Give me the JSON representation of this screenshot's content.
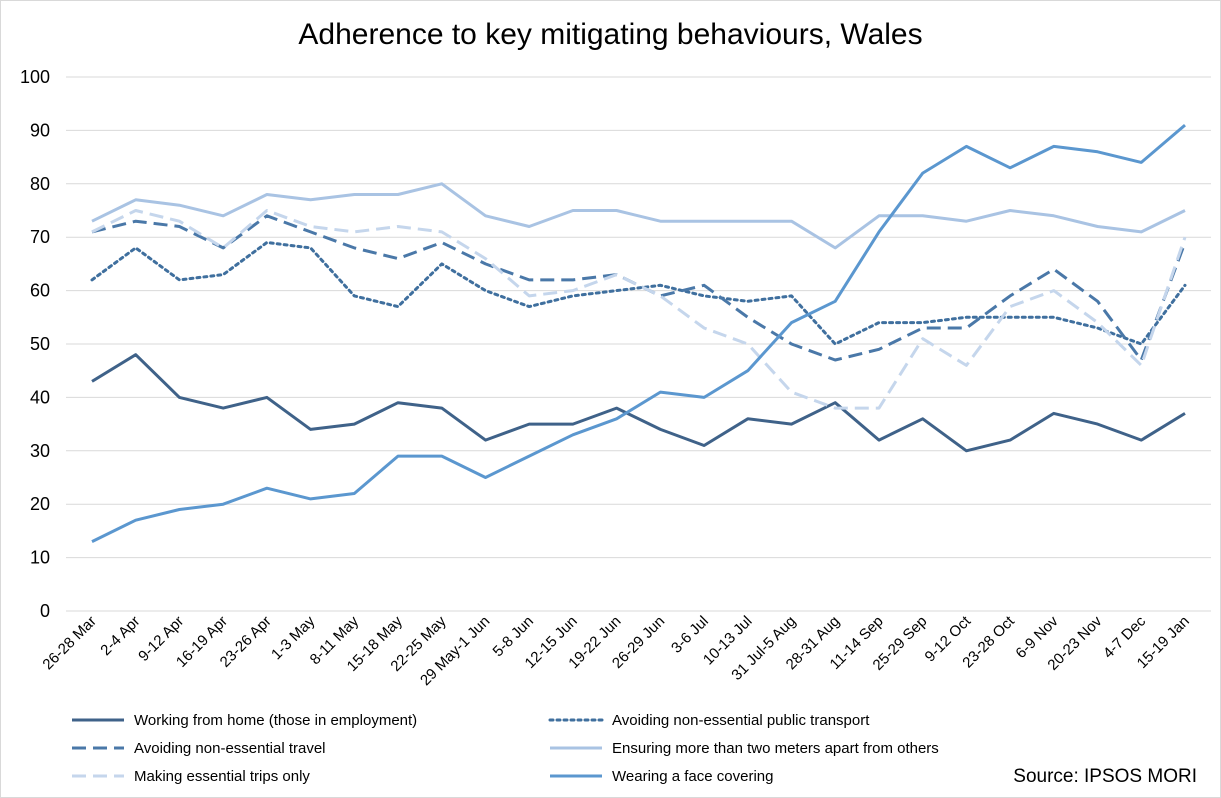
{
  "chart_data": {
    "type": "line",
    "title": "Adherence to key mitigating behaviours, Wales",
    "ylim": [
      0,
      100
    ],
    "yticks": [
      0,
      10,
      20,
      30,
      40,
      50,
      60,
      70,
      80,
      90,
      100
    ],
    "grid": true,
    "legend_position": "bottom",
    "categories": [
      "26-28 Mar",
      "2-4 Apr",
      "9-12 Apr",
      "16-19 Apr",
      "23-26 Apr",
      "1-3 May",
      "8-11 May",
      "15-18 May",
      "22-25 May",
      "29 May-1 Jun",
      "5-8 Jun",
      "12-15 Jun",
      "19-22 Jun",
      "26-29 Jun",
      "3-6 Jul",
      "10-13 Jul",
      "31 Jul-5 Aug",
      "28-31 Aug",
      "11-14 Sep",
      "25-29 Sep",
      "9-12 Oct",
      "23-28 Oct",
      "6-9 Nov",
      "20-23 Nov",
      "4-7 Dec",
      "15-19 Jan"
    ],
    "series": [
      {
        "name": "Working from home (those in employment)",
        "color": "#3f6289",
        "dash": "solid",
        "values": [
          43,
          48,
          40,
          38,
          40,
          34,
          35,
          39,
          38,
          32,
          35,
          35,
          38,
          34,
          31,
          36,
          35,
          39,
          32,
          36,
          30,
          32,
          37,
          35,
          32,
          37
        ]
      },
      {
        "name": "Avoiding non-essential public transport",
        "color": "#3f6f9e",
        "dash": "dotted",
        "values": [
          62,
          68,
          62,
          63,
          69,
          68,
          59,
          57,
          65,
          60,
          57,
          59,
          60,
          61,
          59,
          58,
          59,
          50,
          54,
          54,
          55,
          55,
          55,
          53,
          50,
          61
        ]
      },
      {
        "name": "Avoiding non-essential travel",
        "color": "#4a78a8",
        "dash": "dashed",
        "values": [
          71,
          73,
          72,
          68,
          74,
          71,
          68,
          66,
          69,
          65,
          62,
          62,
          63,
          59,
          61,
          55,
          50,
          47,
          49,
          53,
          53,
          59,
          64,
          58,
          47,
          69
        ]
      },
      {
        "name": "Ensuring more than two meters apart from others",
        "color": "#a9c3e3",
        "dash": "solid",
        "values": [
          73,
          77,
          76,
          74,
          78,
          77,
          78,
          78,
          80,
          74,
          72,
          75,
          75,
          73,
          73,
          73,
          73,
          68,
          74,
          74,
          73,
          75,
          74,
          72,
          71,
          75
        ]
      },
      {
        "name": "Making essential trips only",
        "color": "#c5d6ec",
        "dash": "dashed",
        "values": [
          71,
          75,
          73,
          68,
          75,
          72,
          71,
          72,
          71,
          66,
          59,
          60,
          63,
          59,
          53,
          50,
          41,
          38,
          38,
          51,
          46,
          57,
          60,
          54,
          46,
          70
        ]
      },
      {
        "name": "Wearing a face covering",
        "color": "#5b97cf",
        "dash": "solid",
        "values": [
          13,
          17,
          19,
          20,
          23,
          21,
          22,
          29,
          29,
          25,
          29,
          33,
          36,
          41,
          40,
          45,
          54,
          58,
          71,
          82,
          87,
          83,
          87,
          86,
          84,
          91
        ]
      }
    ]
  },
  "source": "Source: IPSOS MORI"
}
